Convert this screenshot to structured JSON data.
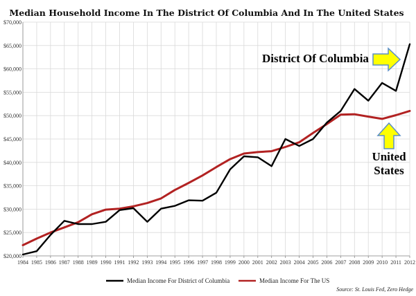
{
  "colors": {
    "dc_line": "#000000",
    "us_line": "#b22222",
    "arrow_fill": "#ffff00",
    "arrow_stroke": "#5a8ec7"
  },
  "chart_data": {
    "type": "line",
    "title": "Median Household Income In The District Of Columbia And In The United States",
    "x": [
      "1984",
      "1985",
      "1986",
      "1987",
      "1988",
      "1989",
      "1990",
      "1991",
      "1992",
      "1993",
      "1994",
      "1995",
      "1996",
      "1997",
      "1998",
      "1999",
      "2000",
      "2001",
      "2002",
      "2003",
      "2004",
      "2005",
      "2006",
      "2007",
      "2008",
      "2009",
      "2010",
      "2011",
      "2012"
    ],
    "ylim": [
      20000,
      70000
    ],
    "yticks": [
      "$20,000",
      "$25,000",
      "$30,000",
      "$35,000",
      "$40,000",
      "$45,000",
      "$50,000",
      "$55,000",
      "$60,000",
      "$65,000",
      "$70,000"
    ],
    "ytick_values": [
      20000,
      25000,
      30000,
      35000,
      40000,
      45000,
      50000,
      55000,
      60000,
      65000,
      70000
    ],
    "grid": true,
    "legend_position": "bottom",
    "series": [
      {
        "name": "Median Income For District of Columbia",
        "color": "#000000",
        "values": [
          20300,
          21000,
          24500,
          27500,
          26800,
          26800,
          27300,
          29800,
          30200,
          27300,
          30100,
          30700,
          31900,
          31800,
          33500,
          38500,
          41300,
          41100,
          39200,
          45000,
          43500,
          45000,
          48500,
          51000,
          55700,
          53200,
          57000,
          55300,
          65300
        ]
      },
      {
        "name": "Median Income For The US",
        "color": "#b22222",
        "values": [
          22300,
          23700,
          25000,
          26100,
          27200,
          28900,
          29900,
          30100,
          30600,
          31300,
          32300,
          34100,
          35600,
          37200,
          39000,
          40700,
          41900,
          42200,
          42400,
          43300,
          44300,
          46300,
          48200,
          50200,
          50300,
          49800,
          49300,
          50100,
          51000
        ]
      }
    ],
    "annotations": {
      "dc_label": "District Of Columbia",
      "us_label_line1": "United",
      "us_label_line2": "States"
    },
    "source": "Source: St. Louis Fed, Zero Hedge"
  }
}
